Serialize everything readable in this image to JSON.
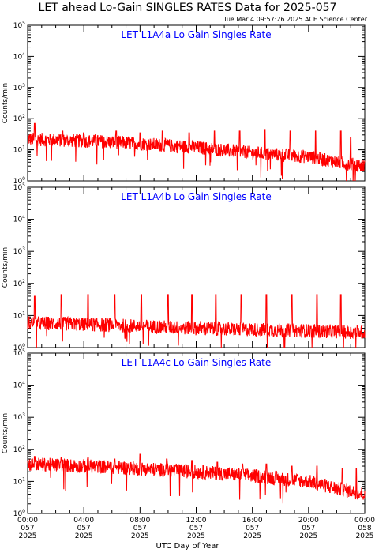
{
  "title": "LET ahead Lo-Gain SINGLES RATES Data for 2025-057",
  "subtitle": "Tue Mar  4 09:57:26 2025 ACE Science Center",
  "colors": {
    "trace": "#ff0000",
    "panel_title": "#0000ff",
    "axes": "#000000"
  },
  "chart_data": [
    {
      "type": "line",
      "title": "LET L1A4a Lo Gain Singles Rate",
      "ylabel": "Counts/min",
      "yscale": "log",
      "ylim": [
        1,
        100000
      ],
      "yticks": [
        {
          "base": "10",
          "exp": "0"
        },
        {
          "base": "10",
          "exp": "1"
        },
        {
          "base": "10",
          "exp": "2"
        },
        {
          "base": "10",
          "exp": "3"
        },
        {
          "base": "10",
          "exp": "4"
        },
        {
          "base": "10",
          "exp": "5"
        }
      ],
      "xlim_hours": [
        0,
        24
      ],
      "baseline": {
        "hours": [
          0,
          6,
          12,
          16,
          20,
          22,
          24
        ],
        "values": [
          22,
          18,
          12,
          8,
          6,
          4,
          3
        ]
      },
      "spike_hours": [
        0.5,
        2.5,
        4.0,
        6.3,
        8.0,
        9.6,
        11.5,
        13.3,
        15.1,
        16.9,
        18.7,
        20.5,
        22.3,
        23.0
      ],
      "spike_values": [
        70,
        40,
        35,
        40,
        35,
        40,
        35,
        40,
        40,
        45,
        40,
        40,
        40,
        25
      ]
    },
    {
      "type": "line",
      "title": "LET L1A4b Lo Gain Singles Rate",
      "ylabel": "Counts/min",
      "yscale": "log",
      "ylim": [
        1,
        100000
      ],
      "yticks": [
        {
          "base": "10",
          "exp": "0"
        },
        {
          "base": "10",
          "exp": "1"
        },
        {
          "base": "10",
          "exp": "2"
        },
        {
          "base": "10",
          "exp": "3"
        },
        {
          "base": "10",
          "exp": "4"
        },
        {
          "base": "10",
          "exp": "5"
        }
      ],
      "xlim_hours": [
        0,
        24
      ],
      "baseline": {
        "hours": [
          0,
          6,
          12,
          18,
          24
        ],
        "values": [
          6,
          5,
          4,
          3.5,
          3
        ]
      },
      "spike_hours": [
        0.5,
        2.4,
        4.3,
        6.2,
        8.1,
        10.0,
        11.7,
        13.4,
        15.2,
        17.0,
        18.8,
        20.6,
        22.3
      ],
      "spike_values": [
        40,
        45,
        45,
        45,
        45,
        45,
        45,
        45,
        45,
        45,
        45,
        45,
        45
      ]
    },
    {
      "type": "line",
      "title": "LET L1A4c Lo Gain Singles Rate",
      "ylabel": "Counts/min",
      "yscale": "log",
      "ylim": [
        1,
        100000
      ],
      "yticks": [
        {
          "base": "10",
          "exp": "0"
        },
        {
          "base": "10",
          "exp": "1"
        },
        {
          "base": "10",
          "exp": "2"
        },
        {
          "base": "10",
          "exp": "3"
        },
        {
          "base": "10",
          "exp": "4"
        },
        {
          "base": "10",
          "exp": "5"
        }
      ],
      "xlim_hours": [
        0,
        24
      ],
      "baseline": {
        "hours": [
          0,
          6,
          12,
          16,
          20,
          22,
          24
        ],
        "values": [
          35,
          28,
          20,
          15,
          10,
          6,
          4
        ]
      },
      "spike_hours": [
        0.5,
        2.4,
        4.3,
        6.2,
        8.0,
        9.9,
        11.7,
        13.5,
        15.3,
        17.0,
        18.8,
        20.6,
        22.4,
        23.4
      ],
      "spike_values": [
        60,
        55,
        55,
        50,
        70,
        50,
        45,
        40,
        35,
        35,
        30,
        30,
        25,
        25
      ]
    }
  ],
  "x_axis": {
    "label": "UTC Day of Year",
    "ticks": [
      {
        "hours": 0,
        "lines": [
          "00:00",
          "057",
          "2025"
        ]
      },
      {
        "hours": 4,
        "lines": [
          "04:00",
          "057",
          "2025"
        ]
      },
      {
        "hours": 8,
        "lines": [
          "08:00",
          "057",
          "2025"
        ]
      },
      {
        "hours": 12,
        "lines": [
          "12:00",
          "057",
          "2025"
        ]
      },
      {
        "hours": 16,
        "lines": [
          "16:00",
          "057",
          "2025"
        ]
      },
      {
        "hours": 20,
        "lines": [
          "20:00",
          "057",
          "2025"
        ]
      },
      {
        "hours": 24,
        "lines": [
          "00:00",
          "058",
          "2025"
        ]
      }
    ]
  }
}
